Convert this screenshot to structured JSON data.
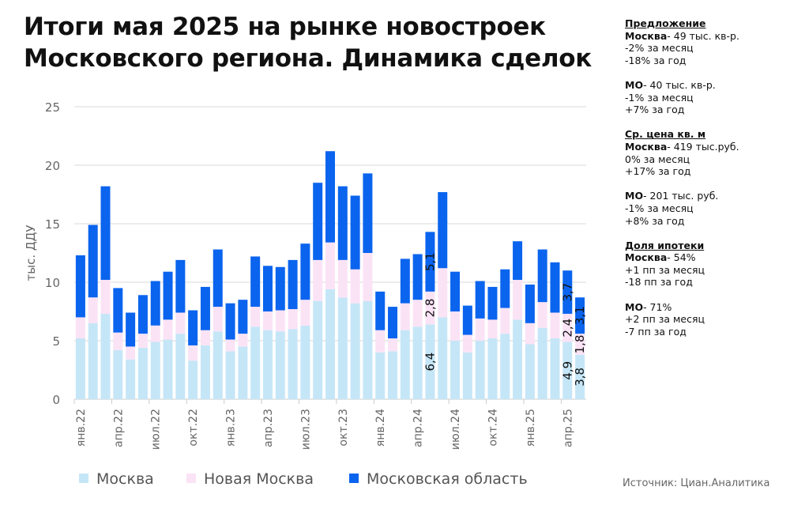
{
  "title_lines": [
    "Итоги мая 2025 на рынке новостроек",
    "Московского региона. Динамика сделок"
  ],
  "side_panel": [
    {
      "heading": "Предложение",
      "entries": [
        {
          "region": "Москва",
          "value": "- 49 тыс. кв-р.",
          "lines": [
            "-2% за месяц",
            "-18% за год"
          ]
        },
        {
          "region": "МО",
          "value": "- 40 тыс. кв-р.",
          "lines": [
            "-1% за месяц",
            "+7% за год"
          ]
        }
      ]
    },
    {
      "heading": "Ср. цена кв. м",
      "entries": [
        {
          "region": "Москва",
          "value": "- 419 тыс.руб.",
          "lines": [
            "0% за месяц",
            "+17% за год"
          ]
        },
        {
          "region": "МО",
          "value": "- 201 тыс. руб.",
          "lines": [
            "-1% за месяц",
            "+8% за год"
          ]
        }
      ]
    },
    {
      "heading": "Доля ипотеки",
      "entries": [
        {
          "region": "Москва",
          "value": "- 54%",
          "lines": [
            "+1 пп за месяц",
            "-18 пп за год"
          ]
        },
        {
          "region": "МО",
          "value": "- 71%",
          "lines": [
            "+2 пп за месяц",
            "-7 пп за год"
          ]
        }
      ]
    }
  ],
  "source": "Источник: Циан.Аналитика",
  "chart_data": {
    "type": "bar",
    "stacked": true,
    "title": "Итоги мая 2025 на рынке новостроек Московского региона. Динамика сделок",
    "ylabel": "тыс. ДДУ",
    "xlabel": "",
    "ylim": [
      0,
      25
    ],
    "yticks": [
      0,
      5,
      10,
      15,
      20,
      25
    ],
    "grid": true,
    "legend": "bottom",
    "xtick_labels": [
      {
        "index": 0,
        "label": "янв.22"
      },
      {
        "index": 3,
        "label": "апр.22"
      },
      {
        "index": 6,
        "label": "июл.22"
      },
      {
        "index": 9,
        "label": "окт.22"
      },
      {
        "index": 12,
        "label": "янв.23"
      },
      {
        "index": 15,
        "label": "апр.23"
      },
      {
        "index": 18,
        "label": "июл.23"
      },
      {
        "index": 21,
        "label": "окт.23"
      },
      {
        "index": 24,
        "label": "янв.24"
      },
      {
        "index": 27,
        "label": "апр.24"
      },
      {
        "index": 30,
        "label": "июл.24"
      },
      {
        "index": 33,
        "label": "окт.24"
      },
      {
        "index": 36,
        "label": "янв.25"
      },
      {
        "index": 39,
        "label": "апр.25"
      }
    ],
    "bar_count": 41,
    "series": [
      {
        "name": "Москва",
        "color": "#c5e6f7",
        "values": [
          5.2,
          6.5,
          7.3,
          4.2,
          3.4,
          4.4,
          4.9,
          5.1,
          5.6,
          3.3,
          4.6,
          5.8,
          4.1,
          4.5,
          6.2,
          5.9,
          5.8,
          6.0,
          6.3,
          8.4,
          9.4,
          8.7,
          8.2,
          8.4,
          4.0,
          4.1,
          5.9,
          6.2,
          6.4,
          7.0,
          5.0,
          4.0,
          5.0,
          5.2,
          5.6,
          6.8,
          4.7,
          6.1,
          5.2,
          4.9,
          3.8
        ]
      },
      {
        "name": "Новая Москва",
        "color": "#fbe3f6",
        "values": [
          1.8,
          2.2,
          2.9,
          1.5,
          1.1,
          1.2,
          1.4,
          1.7,
          1.8,
          1.3,
          1.3,
          2.1,
          1.0,
          1.1,
          1.7,
          1.6,
          1.8,
          1.7,
          2.2,
          3.5,
          4.0,
          3.2,
          2.9,
          4.1,
          1.9,
          1.1,
          2.3,
          2.3,
          2.8,
          4.2,
          2.5,
          1.5,
          1.9,
          1.6,
          2.2,
          3.4,
          1.8,
          2.2,
          2.2,
          2.4,
          1.8
        ]
      },
      {
        "name": "Московская область",
        "color": "#0a64ee",
        "values": [
          5.3,
          6.2,
          8.0,
          3.8,
          2.9,
          3.3,
          3.8,
          4.1,
          4.5,
          3.0,
          3.7,
          4.9,
          3.1,
          2.9,
          4.3,
          3.9,
          3.7,
          4.2,
          4.8,
          6.6,
          7.8,
          6.3,
          6.3,
          6.8,
          3.3,
          2.7,
          3.8,
          3.9,
          5.1,
          6.5,
          3.4,
          2.5,
          3.2,
          2.8,
          3.3,
          3.3,
          3.3,
          4.5,
          4.3,
          3.7,
          3.1
        ]
      }
    ],
    "data_labels": [
      {
        "index": 28,
        "labels": [
          "6,4",
          "2,8",
          "5,1"
        ]
      },
      {
        "index": 39,
        "labels": [
          "4,9",
          "2,4",
          "3,7"
        ]
      },
      {
        "index": 40,
        "labels": [
          "3,8",
          "1,8",
          "3,1"
        ]
      }
    ]
  }
}
